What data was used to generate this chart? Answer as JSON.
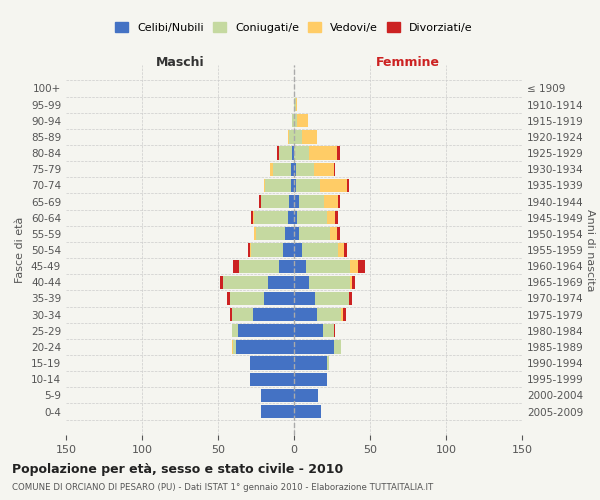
{
  "age_groups": [
    "0-4",
    "5-9",
    "10-14",
    "15-19",
    "20-24",
    "25-29",
    "30-34",
    "35-39",
    "40-44",
    "45-49",
    "50-54",
    "55-59",
    "60-64",
    "65-69",
    "70-74",
    "75-79",
    "80-84",
    "85-89",
    "90-94",
    "95-99",
    "100+"
  ],
  "birth_years": [
    "2005-2009",
    "2000-2004",
    "1995-1999",
    "1990-1994",
    "1985-1989",
    "1980-1984",
    "1975-1979",
    "1970-1974",
    "1965-1969",
    "1960-1964",
    "1955-1959",
    "1950-1954",
    "1945-1949",
    "1940-1944",
    "1935-1939",
    "1930-1934",
    "1925-1929",
    "1920-1924",
    "1915-1919",
    "1910-1914",
    "≤ 1909"
  ],
  "maschi": {
    "celibi": [
      22,
      22,
      29,
      29,
      38,
      37,
      27,
      20,
      17,
      10,
      7,
      6,
      4,
      3,
      2,
      2,
      1,
      0,
      0,
      0,
      0
    ],
    "coniugati": [
      0,
      0,
      0,
      0,
      2,
      4,
      14,
      22,
      30,
      26,
      21,
      19,
      22,
      19,
      17,
      12,
      9,
      3,
      1,
      0,
      0
    ],
    "vedovi": [
      0,
      0,
      0,
      0,
      1,
      0,
      0,
      0,
      0,
      0,
      1,
      1,
      1,
      0,
      1,
      2,
      0,
      1,
      0,
      0,
      0
    ],
    "divorziati": [
      0,
      0,
      0,
      0,
      0,
      0,
      1,
      2,
      2,
      4,
      1,
      0,
      1,
      1,
      0,
      0,
      1,
      0,
      0,
      0,
      0
    ]
  },
  "femmine": {
    "nubili": [
      18,
      16,
      22,
      22,
      26,
      19,
      15,
      14,
      10,
      8,
      5,
      3,
      2,
      3,
      1,
      1,
      0,
      0,
      0,
      0,
      0
    ],
    "coniugate": [
      0,
      0,
      0,
      1,
      5,
      7,
      16,
      22,
      27,
      29,
      24,
      21,
      20,
      17,
      16,
      12,
      10,
      5,
      2,
      1,
      0
    ],
    "vedove": [
      0,
      0,
      0,
      0,
      0,
      0,
      1,
      0,
      1,
      5,
      4,
      4,
      5,
      9,
      18,
      13,
      18,
      10,
      7,
      1,
      0
    ],
    "divorziate": [
      0,
      0,
      0,
      0,
      0,
      1,
      2,
      2,
      2,
      5,
      2,
      2,
      2,
      1,
      1,
      1,
      2,
      0,
      0,
      0,
      0
    ]
  },
  "colors": {
    "celibi": "#4472C4",
    "coniugati": "#C5D9A0",
    "vedovi": "#FFCC66",
    "divorziati": "#CC2222"
  },
  "title": "Popolazione per età, sesso e stato civile - 2010",
  "subtitle": "COMUNE DI ORCIANO DI PESARO (PU) - Dati ISTAT 1° gennaio 2010 - Elaborazione TUTTAITALIA.IT",
  "xlabel_left": "Maschi",
  "xlabel_right": "Femmine",
  "ylabel_left": "Fasce di età",
  "ylabel_right": "Anni di nascita",
  "legend_labels": [
    "Celibi/Nubili",
    "Coniugati/e",
    "Vedovi/e",
    "Divorziati/e"
  ],
  "xlim": 150,
  "background_color": "#f5f5f0"
}
